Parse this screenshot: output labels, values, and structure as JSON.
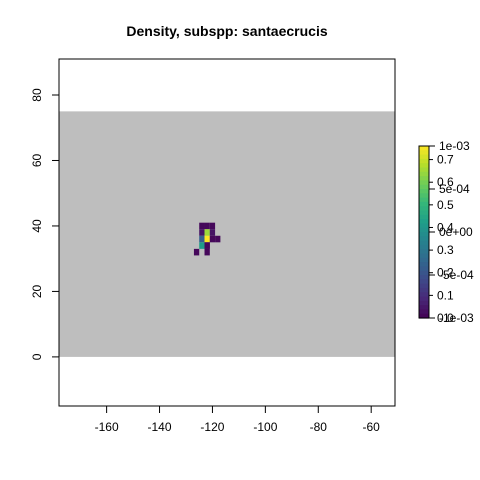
{
  "chart_data": {
    "type": "heatmap",
    "title": "Density, subspp: santaecrucis",
    "xlabel": "",
    "ylabel": "",
    "xlim": [
      -178,
      -51
    ],
    "ylim": [
      -15,
      91
    ],
    "x_ticks": [
      -160,
      -140,
      -120,
      -100,
      -80,
      -60
    ],
    "y_ticks": [
      0,
      20,
      40,
      60,
      80
    ],
    "raster_extent": {
      "x": [
        -178,
        -51
      ],
      "y": [
        0,
        75
      ]
    },
    "raster_na_color": "#bebebe",
    "cell_size": 2,
    "cells": [
      {
        "x": -124,
        "y": 40,
        "value": 0.02
      },
      {
        "x": -122,
        "y": 40,
        "value": 0.02
      },
      {
        "x": -120,
        "y": 40,
        "value": 0.02
      },
      {
        "x": -124,
        "y": 38,
        "value": 0.05
      },
      {
        "x": -122,
        "y": 38,
        "value": 0.85
      },
      {
        "x": -120,
        "y": 38,
        "value": 0.05
      },
      {
        "x": -124,
        "y": 36,
        "value": 0.3
      },
      {
        "x": -122,
        "y": 36,
        "value": 1.0
      },
      {
        "x": -120,
        "y": 36,
        "value": 0.02
      },
      {
        "x": -124,
        "y": 34,
        "value": 0.55
      },
      {
        "x": -122,
        "y": 34,
        "value": 0.02
      },
      {
        "x": -118,
        "y": 36,
        "value": 0.02
      },
      {
        "x": -122,
        "y": 32,
        "value": 0.02
      },
      {
        "x": -126,
        "y": 32,
        "value": 0.02
      },
      {
        "x": -122,
        "y": 34,
        "value": 0.02
      }
    ],
    "legend": {
      "position": "right",
      "inner_labels": [
        "0.0",
        "0.1",
        "0.2",
        "0.3",
        "0.4",
        "0.5",
        "0.6",
        "0.7"
      ],
      "inner_values": [
        0.0,
        0.1,
        0.2,
        0.3,
        0.4,
        0.5,
        0.6,
        0.7
      ],
      "outer_labels": [
        "-1e-03",
        "-5e-04",
        "0e+00",
        "5e-04",
        "1e-03"
      ],
      "outer_values": [
        -0.001,
        -0.0005,
        0,
        0.0005,
        0.001
      ],
      "inner_range": [
        0,
        0.76
      ],
      "outer_range": [
        -0.001,
        0.001
      ]
    }
  }
}
